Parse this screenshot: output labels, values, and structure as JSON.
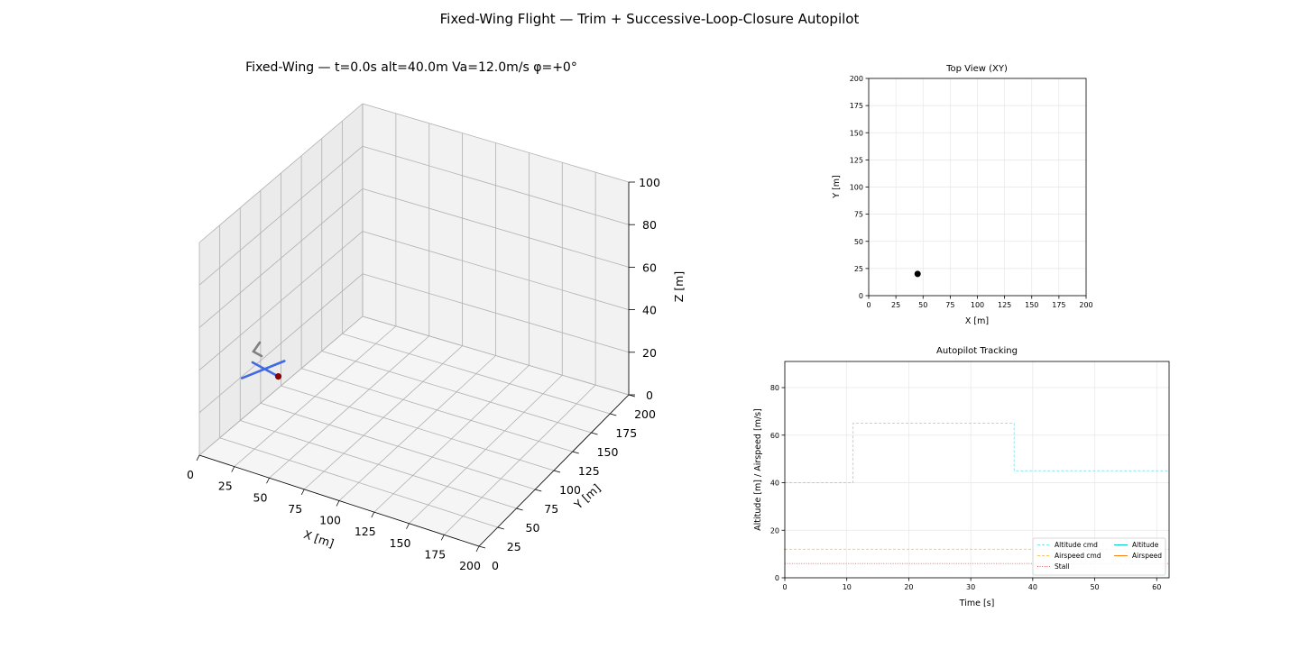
{
  "figure": {
    "suptitle": "Fixed-Wing Flight — Trim + Successive-Loop-Closure Autopilot"
  },
  "colors": {
    "fuselage": "#4169e1",
    "tail": "#808080",
    "nose": "#8b0000",
    "altitude": "#00ced1",
    "altitude_cmd": "#7fe6ec",
    "airspeed": "#ff7f0e",
    "airspeed_cmd": "#f6c26a",
    "stall": "#e06060"
  },
  "chart_data": [
    {
      "type": "scatter3d",
      "title": "Fixed-Wing — t=0.0s  alt=40.0m  Va=12.0m/s  φ=+0°",
      "xlabel": "X [m]",
      "ylabel": "Y [m]",
      "zlabel": "Z [m]",
      "xlim": [
        0,
        200
      ],
      "ylim": [
        0,
        200
      ],
      "zlim": [
        0,
        100
      ],
      "xticks": [
        "0",
        "25",
        "50",
        "75",
        "100",
        "125",
        "150",
        "175",
        "200"
      ],
      "yticks": [
        "0",
        "25",
        "50",
        "75",
        "100",
        "125",
        "150",
        "175",
        "200"
      ],
      "zticks": [
        "0",
        "20",
        "40",
        "60",
        "80",
        "100"
      ],
      "aircraft": {
        "x": 45,
        "y": 20,
        "z": 40
      },
      "grid": true
    },
    {
      "type": "scatter",
      "title": "Top View (XY)",
      "xlabel": "X [m]",
      "ylabel": "Y [m]",
      "xlim": [
        0,
        200
      ],
      "ylim": [
        0,
        200
      ],
      "xticks": [
        "0",
        "25",
        "50",
        "75",
        "100",
        "125",
        "150",
        "175",
        "200"
      ],
      "yticks": [
        "0",
        "25",
        "50",
        "75",
        "100",
        "125",
        "150",
        "175",
        "200"
      ],
      "points": [
        {
          "x": 45,
          "y": 20
        }
      ],
      "grid": true
    },
    {
      "type": "line",
      "title": "Autopilot Tracking",
      "xlabel": "Time [s]",
      "ylabel": "Altitude [m] / Airspeed [m/s]",
      "xlim": [
        0,
        62
      ],
      "ylim": [
        0,
        91
      ],
      "xticks": [
        "0",
        "10",
        "20",
        "30",
        "40",
        "50",
        "60"
      ],
      "yticks": [
        "0",
        "20",
        "40",
        "60",
        "80"
      ],
      "legend_position": "lower-right",
      "grid": true,
      "series": [
        {
          "name": "Altitude cmd",
          "style": "dashed",
          "x": [
            0,
            11,
            11,
            37,
            37,
            62
          ],
          "y": [
            40,
            40,
            65,
            65,
            45,
            45
          ]
        },
        {
          "name": "Airspeed cmd",
          "style": "dashed",
          "x": [
            0,
            62
          ],
          "y": [
            12,
            12
          ]
        },
        {
          "name": "Stall",
          "style": "dotted",
          "x": [
            0,
            62
          ],
          "y": [
            6,
            6
          ]
        },
        {
          "name": "Altitude",
          "style": "solid",
          "x": [
            0
          ],
          "y": [
            40
          ]
        },
        {
          "name": "Airspeed",
          "style": "solid",
          "x": [
            0
          ],
          "y": [
            12
          ]
        }
      ]
    }
  ]
}
